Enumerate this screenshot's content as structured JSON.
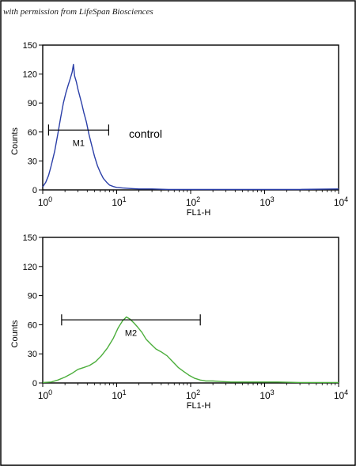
{
  "credit": "with permission from LifeSpan Biosciences",
  "chart_data": [
    {
      "type": "line",
      "title": "",
      "xlabel": "FL1-H",
      "ylabel": "Counts",
      "xscale": "log",
      "xlim": [
        1,
        10000
      ],
      "ylim": [
        0,
        150
      ],
      "x_ticks": [
        {
          "value": 1,
          "base": "10",
          "exp": "0"
        },
        {
          "value": 10,
          "base": "10",
          "exp": "1"
        },
        {
          "value": 100,
          "base": "10",
          "exp": "2"
        },
        {
          "value": 1000,
          "base": "10",
          "exp": "3"
        },
        {
          "value": 10000,
          "base": "10",
          "exp": "4"
        }
      ],
      "y_ticks": [
        "0",
        "30",
        "60",
        "90",
        "120",
        "150"
      ],
      "color": "#2b3fa8",
      "annotation": "control",
      "marker": {
        "label": "M1",
        "from": 1.2,
        "to": 7.8,
        "y": 62
      },
      "series": [
        {
          "x": [
            1.0,
            1.1,
            1.2,
            1.3,
            1.45,
            1.6,
            1.75,
            1.9,
            2.05,
            2.2,
            2.35,
            2.5,
            2.6,
            2.7,
            2.85,
            3.0,
            3.2,
            3.4,
            3.6,
            3.9,
            4.2,
            4.6,
            5.0,
            5.5,
            6.0,
            6.6,
            7.3,
            8.0,
            9.0,
            10,
            12,
            15,
            20,
            30,
            50,
            100,
            200,
            500,
            1000,
            3000,
            10000
          ],
          "y": [
            3,
            8,
            15,
            25,
            40,
            58,
            75,
            90,
            100,
            108,
            115,
            122,
            130,
            118,
            112,
            104,
            96,
            88,
            80,
            70,
            58,
            46,
            35,
            25,
            18,
            12,
            8,
            5,
            3.5,
            2.5,
            2,
            1.5,
            1,
            1,
            0.5,
            0.5,
            0.5,
            0.5,
            0.5,
            0.5,
            1
          ]
        }
      ]
    },
    {
      "type": "line",
      "title": "",
      "xlabel": "FL1-H",
      "ylabel": "Counts",
      "xscale": "log",
      "xlim": [
        1,
        10000
      ],
      "ylim": [
        0,
        150
      ],
      "x_ticks": [
        {
          "value": 1,
          "base": "10",
          "exp": "0"
        },
        {
          "value": 10,
          "base": "10",
          "exp": "1"
        },
        {
          "value": 100,
          "base": "10",
          "exp": "2"
        },
        {
          "value": 1000,
          "base": "10",
          "exp": "3"
        },
        {
          "value": 10000,
          "base": "10",
          "exp": "4"
        }
      ],
      "y_ticks": [
        "0",
        "30",
        "60",
        "90",
        "120",
        "150"
      ],
      "color": "#4cae3c",
      "annotation": "",
      "marker": {
        "label": "M2",
        "from": 1.8,
        "to": 135,
        "y": 65
      },
      "series": [
        {
          "x": [
            1.0,
            1.3,
            1.6,
            2.0,
            2.5,
            3.0,
            3.6,
            4.3,
            5.2,
            6.2,
            7.5,
            9.0,
            10.5,
            12,
            13.5,
            15,
            17,
            19,
            22,
            25,
            29,
            34,
            40,
            48,
            57,
            68,
            80,
            95,
            112,
            135,
            160,
            200,
            260,
            350,
            500,
            800,
            1500,
            3000,
            6000,
            10000
          ],
          "y": [
            0.5,
            1,
            3,
            6,
            10,
            14,
            16,
            18,
            22,
            28,
            36,
            46,
            57,
            64,
            68,
            66,
            62,
            58,
            52,
            45,
            40,
            35,
            32,
            28,
            22,
            16,
            12,
            8,
            5,
            3,
            2,
            2,
            1.5,
            1,
            1,
            1,
            1,
            0.5,
            0.5,
            0.5
          ]
        }
      ]
    }
  ]
}
